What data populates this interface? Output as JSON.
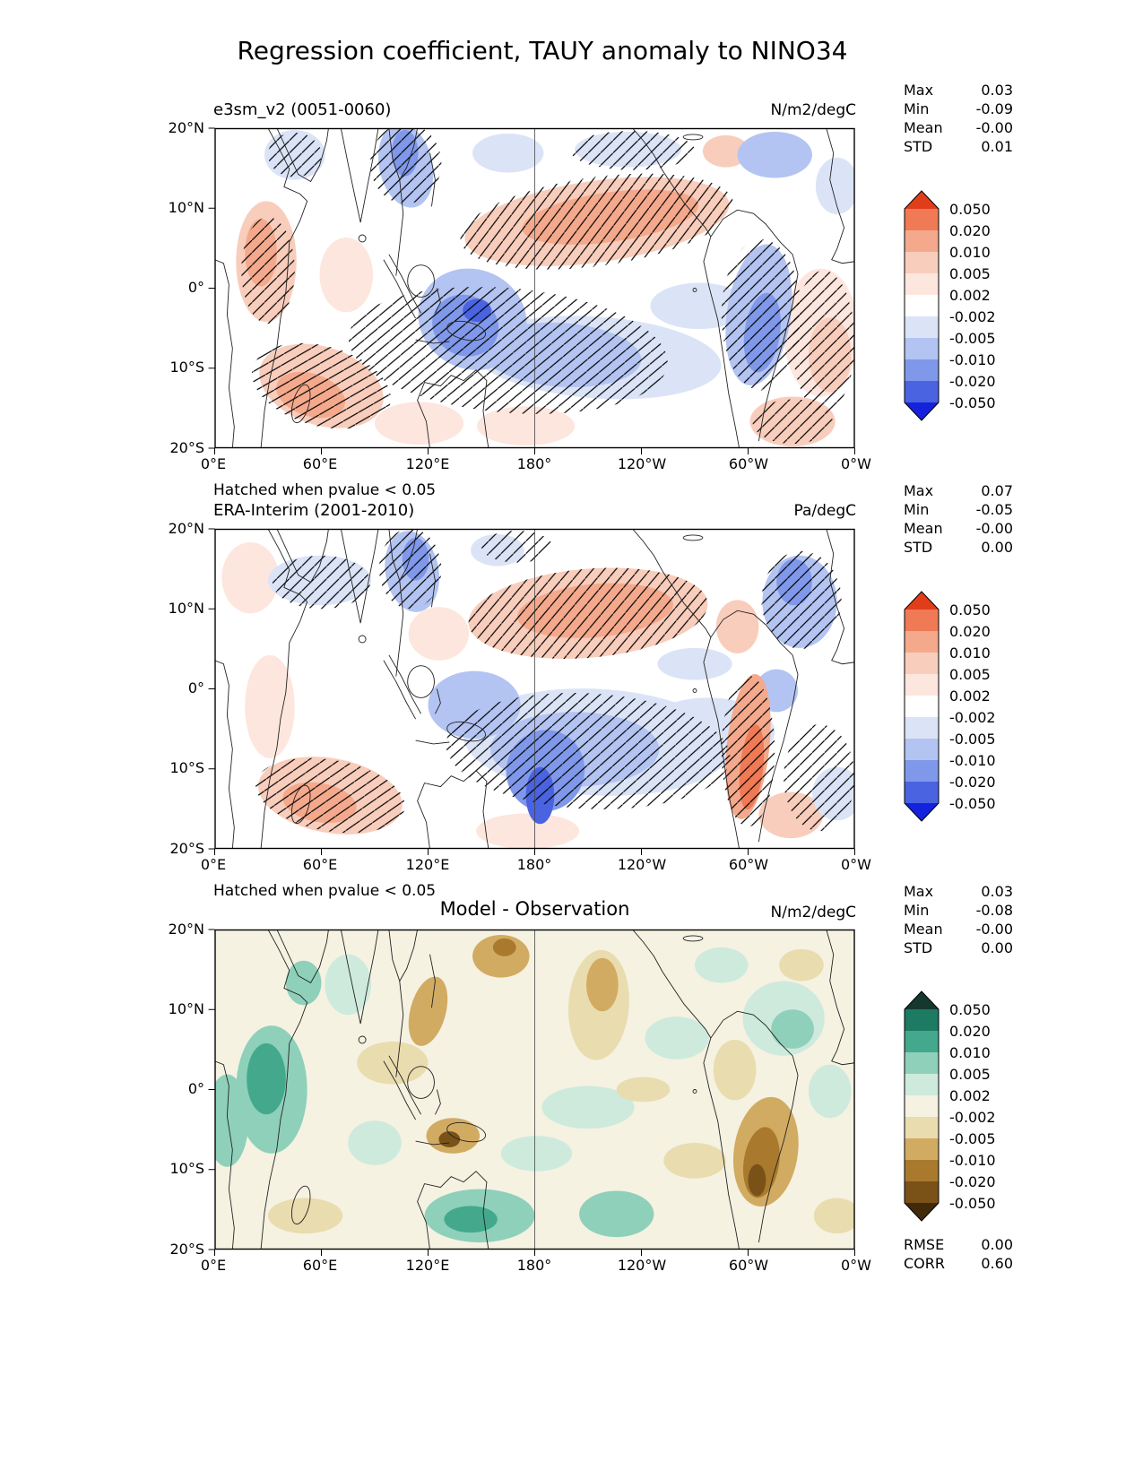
{
  "title": "Regression coefficient, TAUY anomaly to NINO34",
  "axes": {
    "xticks": [
      "0°E",
      "60°E",
      "120°E",
      "180°",
      "120°W",
      "60°W",
      "0°W"
    ],
    "yticks": [
      "20°N",
      "10°N",
      "0°",
      "10°S",
      "20°S"
    ]
  },
  "stat_labels": {
    "max": "Max",
    "min": "Min",
    "mean": "Mean",
    "std": "STD",
    "rmse": "RMSE",
    "corr": "CORR"
  },
  "colorbar_labels": [
    "0.050",
    "0.020",
    "0.010",
    "0.005",
    "0.002",
    "-0.002",
    "-0.005",
    "-0.010",
    "-0.020",
    "-0.050"
  ],
  "panels": [
    {
      "title": "e3sm_v2 (0051-0060)",
      "units": "N/m2/degC",
      "stats": {
        "max": "0.03",
        "min": "-0.09",
        "mean": "-0.00",
        "std": "0.01"
      },
      "hatch_note": "Hatched when pvalue < 0.05",
      "palette": "blue_red"
    },
    {
      "title": "ERA-Interim (2001-2010)",
      "units": "Pa/degC",
      "stats": {
        "max": "0.07",
        "min": "-0.05",
        "mean": "-0.00",
        "std": "0.00"
      },
      "hatch_note": "Hatched when pvalue < 0.05",
      "palette": "blue_red"
    },
    {
      "title": "Model - Observation",
      "units": "N/m2/degC",
      "stats": {
        "max": "0.03",
        "min": "-0.08",
        "mean": "-0.00",
        "std": "0.00"
      },
      "rmse": "0.00",
      "corr": "0.60",
      "palette": "brown_teal"
    }
  ],
  "palettes": {
    "blue_red": {
      "over": "#e23d1a",
      "p4": "#ef7a55",
      "p3": "#f5a98c",
      "p2": "#f9cdbc",
      "p1": "#fde6dd",
      "zero": "#ffffff",
      "n1": "#dbe4f7",
      "n2": "#b3c4f2",
      "n3": "#8098ea",
      "n4": "#4a63e0",
      "under": "#1422dd"
    },
    "brown_teal": {
      "over": "#14382e",
      "p4": "#1d7a63",
      "p3": "#44a98c",
      "p2": "#8fd0ba",
      "p1": "#cdeadd",
      "zero": "#f5f2e2",
      "n1": "#e9dcae",
      "n2": "#d2ab62",
      "n3": "#a97a2e",
      "n4": "#7a5218",
      "under": "#402a08"
    }
  },
  "chart_data": {
    "type": "heatmap",
    "title": "Regression coefficient, TAUY anomaly to NINO34",
    "variable": "TAUY anomaly regressed onto NINO34",
    "lon_range_deg": [
      0,
      360
    ],
    "lat_range_deg": [
      -20,
      20
    ],
    "xtick_values_deg_east": [
      0,
      60,
      120,
      180,
      240,
      300,
      360
    ],
    "ytick_values_deg_north": [
      20,
      10,
      0,
      -10,
      -20
    ],
    "contour_levels": [
      -0.05,
      -0.02,
      -0.01,
      -0.005,
      -0.002,
      0.002,
      0.005,
      0.01,
      0.02,
      0.05
    ],
    "panels": [
      {
        "name": "e3sm_v2 (0051-0060)",
        "units": "N/m2/degC",
        "max": 0.03,
        "min": -0.09,
        "mean": 0.0,
        "std": 0.01,
        "significance": "Hatched when pvalue < 0.05",
        "colormap": "blue-white-red"
      },
      {
        "name": "ERA-Interim (2001-2010)",
        "units": "Pa/degC",
        "max": 0.07,
        "min": -0.05,
        "mean": 0.0,
        "std": 0.0,
        "significance": "Hatched when pvalue < 0.05",
        "colormap": "blue-white-red"
      },
      {
        "name": "Model - Observation",
        "units": "N/m2/degC",
        "max": 0.03,
        "min": -0.08,
        "mean": 0.0,
        "std": 0.0,
        "rmse": 0.0,
        "corr": 0.6,
        "colormap": "brown-white-teal"
      }
    ]
  }
}
